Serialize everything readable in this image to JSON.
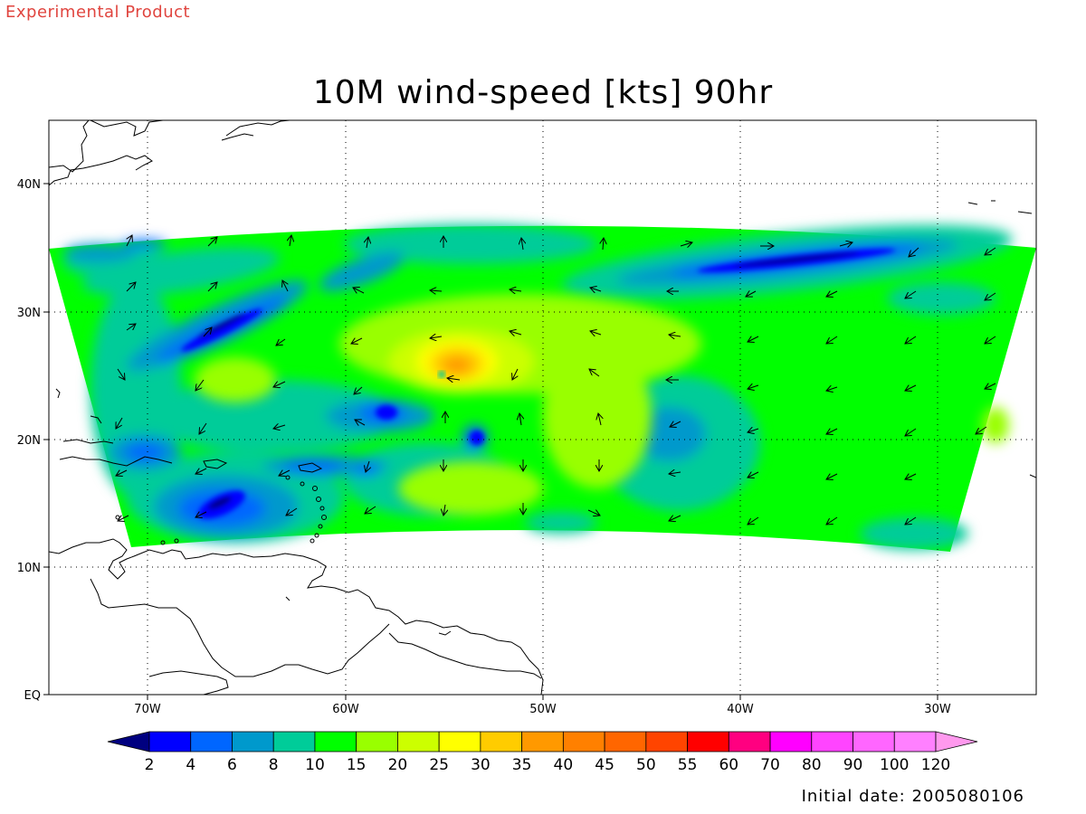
{
  "header": {
    "experimental_label": "Experimental Product",
    "title": "10M wind-speed [kts] 90hr",
    "initial_date": "Initial date: 2005080106"
  },
  "map": {
    "lon_range": [
      -75,
      -25
    ],
    "lat_range": [
      0,
      45
    ],
    "lon_ticks": [
      {
        "value": -70,
        "label": "70W"
      },
      {
        "value": -60,
        "label": "60W"
      },
      {
        "value": -50,
        "label": "50W"
      },
      {
        "value": -40,
        "label": "40W"
      },
      {
        "value": -30,
        "label": "30W"
      }
    ],
    "lat_ticks": [
      {
        "value": 40,
        "label": "40N"
      },
      {
        "value": 30,
        "label": "30N"
      },
      {
        "value": 20,
        "label": "20N"
      },
      {
        "value": 10,
        "label": "10N"
      },
      {
        "value": 0,
        "label": "EQ"
      }
    ],
    "grid": "dotted",
    "storm_center": {
      "lon": -54.5,
      "lat": 25.5
    }
  },
  "colorbar": {
    "labels": [
      "2",
      "4",
      "6",
      "8",
      "10",
      "15",
      "20",
      "25",
      "30",
      "35",
      "40",
      "45",
      "50",
      "55",
      "60",
      "70",
      "80",
      "90",
      "100",
      "120"
    ],
    "colors": [
      "#000080",
      "#0000ff",
      "#0066ff",
      "#0099cc",
      "#00cc99",
      "#00ff00",
      "#99ff00",
      "#ccff00",
      "#ffff00",
      "#ffcc00",
      "#ff9900",
      "#ff8000",
      "#ff6600",
      "#ff4400",
      "#ff0000",
      "#ff0080",
      "#ff00ff",
      "#ff44ff",
      "#ff66ff",
      "#ff80ff",
      "#ff99ee"
    ],
    "under_color": "#000080",
    "over_color": "#ff99ee"
  },
  "colors": {
    "experimental": "#e0453f",
    "background_wind": "#00ff00"
  }
}
